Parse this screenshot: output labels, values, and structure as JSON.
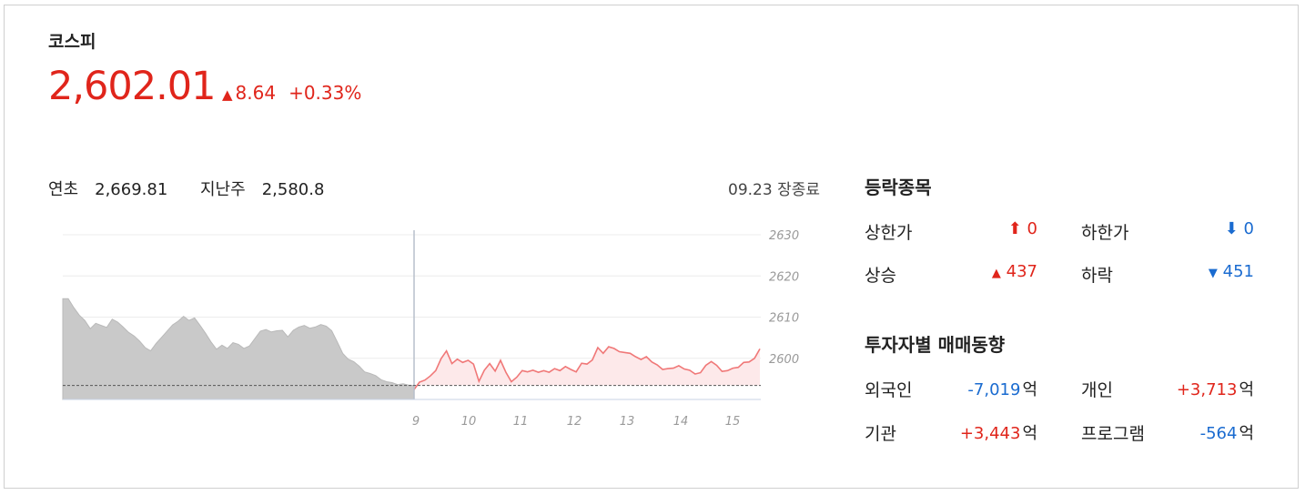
{
  "index": {
    "name": "코스피",
    "price": "2,602.01",
    "change": "8.64",
    "change_pct": "+0.33%",
    "direction": "up",
    "color_up": "#e0251b",
    "color_down": "#1a6bd0"
  },
  "meta": {
    "ytd_label": "연초",
    "ytd_value": "2,669.81",
    "lastweek_label": "지난주",
    "lastweek_value": "2,580.8",
    "status": "09.23 장종료"
  },
  "chart_data": {
    "type": "area",
    "x_ticks": [
      "9",
      "10",
      "11",
      "12",
      "13",
      "14",
      "15"
    ],
    "y_ticks": [
      2600,
      2610,
      2620,
      2630
    ],
    "ylim": [
      2590,
      2632
    ],
    "baseline": 2593.4,
    "premarket_series": [
      2614.5,
      2614.5,
      2612.3,
      2610.5,
      2609.2,
      2607.2,
      2608.5,
      2608.0,
      2607.5,
      2609.5,
      2608.8,
      2607.6,
      2606.3,
      2605.4,
      2604.2,
      2602.6,
      2601.8,
      2603.6,
      2605.1,
      2606.6,
      2608.1,
      2609.0,
      2610.2,
      2609.2,
      2609.8,
      2608.0,
      2606.1,
      2604.0,
      2602.2,
      2603.2,
      2602.4,
      2603.8,
      2603.4,
      2602.4,
      2603.0,
      2604.8,
      2606.6,
      2607.0,
      2606.4,
      2606.7,
      2606.8,
      2605.2,
      2606.8,
      2607.6,
      2608.0,
      2607.3,
      2607.6,
      2608.2,
      2607.8,
      2606.7,
      2604.0,
      2601.2,
      2599.8,
      2599.2,
      2598.1,
      2596.7,
      2596.3,
      2595.8,
      2594.8,
      2594.3,
      2594.1,
      2593.6,
      2593.8,
      2593.5,
      2593.4
    ],
    "series": [
      {
        "name": "",
        "values": [
          2592.4,
          2594.2,
          2594.7,
          2595.7,
          2597.0,
          2599.9,
          2601.8,
          2598.7,
          2599.8,
          2599.0,
          2599.5,
          2598.6,
          2594.4,
          2597.1,
          2598.7,
          2596.9,
          2599.5,
          2596.6,
          2594.3,
          2595.4,
          2597.0,
          2596.7,
          2597.1,
          2596.6,
          2597.0,
          2596.6,
          2597.5,
          2597.0,
          2598.0,
          2597.3,
          2596.7,
          2598.8,
          2598.6,
          2599.6,
          2602.6,
          2601.2,
          2602.8,
          2602.4,
          2601.6,
          2601.4,
          2601.2,
          2600.4,
          2599.7,
          2600.4,
          2599.1,
          2598.4,
          2597.3,
          2597.5,
          2597.6,
          2598.2,
          2597.4,
          2597.1,
          2596.2,
          2596.5,
          2598.3,
          2599.2,
          2598.3,
          2596.8,
          2597.0,
          2597.6,
          2597.8,
          2599.0,
          2599.1,
          2600.0,
          2602.3
        ]
      }
    ]
  },
  "advance_decline": {
    "title": "등락종목",
    "upper_limit_label": "상한가",
    "upper_limit_value": "0",
    "lower_limit_label": "하한가",
    "lower_limit_value": "0",
    "rise_label": "상승",
    "rise_value": "437",
    "fall_label": "하락",
    "fall_value": "451"
  },
  "investors": {
    "title": "투자자별 매매동향",
    "unit": "억",
    "foreign_label": "외국인",
    "foreign_value": "-7,019",
    "individual_label": "개인",
    "individual_value": "+3,713",
    "institution_label": "기관",
    "institution_value": "+3,443",
    "program_label": "프로그램",
    "program_value": "-564"
  }
}
